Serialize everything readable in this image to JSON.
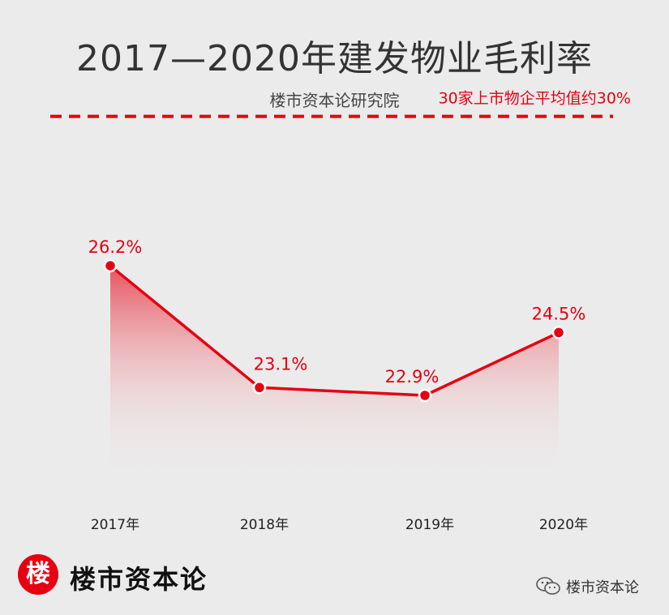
{
  "chart_data": {
    "type": "area",
    "title": "2017—2020年建发物业毛利率",
    "subtitle": "楼市资本论研究院",
    "categories": [
      "2017年",
      "2018年",
      "2019年",
      "2020年"
    ],
    "series": [
      {
        "values": [
          26.2,
          23.1,
          22.9,
          24.5
        ],
        "labels": [
          "26.2%",
          "23.1%",
          "22.9%",
          "24.5%"
        ],
        "color": "#e60012"
      }
    ],
    "reference_line": {
      "value": 30,
      "label": "30家上市物企平均值约30%",
      "style": "dashed",
      "color": "#e60012"
    },
    "grid": false,
    "legend": "none"
  },
  "brand": {
    "logo_char": "楼",
    "name": "楼市资本论"
  },
  "watermark": {
    "icon": "wechat-icon",
    "text": "楼市资本论"
  }
}
